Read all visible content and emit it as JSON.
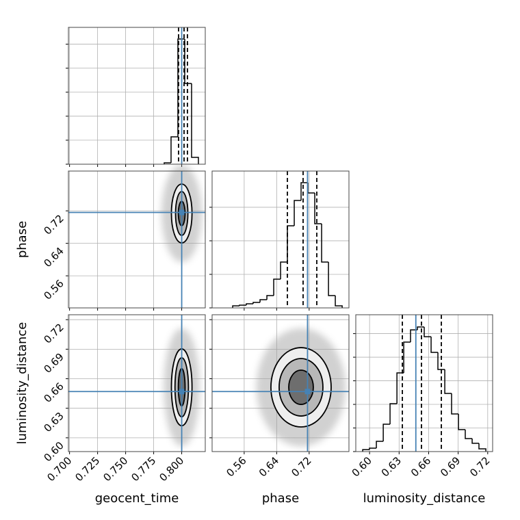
{
  "chart_data": [
    {
      "type": "histogram",
      "bins": [
        0.7844,
        0.7905,
        0.7966,
        0.8027,
        0.8088,
        0.8149
      ],
      "counts": [
        57,
        1140,
        5216,
        3363,
        285
      ],
      "color": "#000000",
      "quantiles": [
        0.7972,
        0.8021,
        0.8051
      ],
      "truth": 0.8,
      "truth_color": "#4682b4",
      "xlim": [
        0.699,
        0.821
      ],
      "ylim": [
        0,
        5700
      ],
      "xticks": [
        0.7,
        0.725,
        0.75,
        0.775,
        0.8
      ],
      "yticks": [
        0,
        1000,
        2000,
        3000,
        4000,
        5000
      ],
      "xtick_labels": false,
      "ytick_labels": false,
      "grid": true
    },
    {
      "type": "contour",
      "ylabel": "phase",
      "center": [
        0.8,
        0.7135
      ],
      "contours": [
        {
          "rx": 0.0092,
          "ry": 0.0725
        },
        {
          "rx": 0.0055,
          "ry": 0.054
        },
        {
          "rx": 0.003,
          "ry": 0.03
        }
      ],
      "fills": [
        "#eeeeee",
        "#b8b8b8",
        "#6e6e6e"
      ],
      "cloud": [
        0.018,
        0.12
      ],
      "truth": [
        0.8,
        0.716
      ],
      "truth_color": "#4682b4",
      "xlim": [
        0.699,
        0.821
      ],
      "ylim": [
        0.481,
        0.818
      ],
      "xticks": [
        0.7,
        0.725,
        0.75,
        0.775,
        0.8
      ],
      "yticks": [
        0.56,
        0.64,
        0.72
      ],
      "xtick_labels": false,
      "ytick_labels": true,
      "grid": true
    },
    {
      "type": "histogram",
      "bins": [
        0.5316,
        0.5484,
        0.5653,
        0.5821,
        0.599,
        0.6159,
        0.6327,
        0.6496,
        0.6664,
        0.6833,
        0.7001,
        0.717,
        0.7338,
        0.7507,
        0.7676,
        0.7844,
        0.8013
      ],
      "counts": [
        31,
        41,
        61,
        82,
        122,
        184,
        428,
        683,
        1224,
        1601,
        1867,
        1714,
        1255,
        683,
        184,
        31
      ],
      "color": "#000000",
      "quantiles": [
        0.6664,
        0.7051,
        0.7388
      ],
      "truth": 0.716,
      "truth_color": "#4682b4",
      "xlim": [
        0.481,
        0.818
      ],
      "ylim": [
        0,
        2040
      ],
      "xticks": [
        0.56,
        0.64,
        0.72
      ],
      "yticks": [
        0,
        500,
        1000,
        1500
      ],
      "xtick_labels": false,
      "ytick_labels": false,
      "grid": true
    },
    {
      "type": "contour",
      "xlabel": "geocent_time",
      "ylabel": "luminosity_distance",
      "center": [
        0.8,
        0.6513
      ],
      "contours": [
        {
          "rx": 0.0092,
          "ry": 0.039
        },
        {
          "rx": 0.006,
          "ry": 0.03
        },
        {
          "rx": 0.003,
          "ry": 0.019
        }
      ],
      "fills": [
        "#eeeeee",
        "#b8b8b8",
        "#6e6e6e"
      ],
      "cloud": [
        0.016,
        0.06
      ],
      "truth": [
        0.8,
        0.647
      ],
      "truth_color": "#4682b4",
      "xlim": [
        0.699,
        0.821
      ],
      "ylim": [
        0.586,
        0.725
      ],
      "xticks": [
        {
          "value": 0.7,
          "label": "0.700"
        },
        0.725,
        {
          "value": 0.75,
          "label": "0.750"
        },
        0.775,
        {
          "value": 0.8,
          "label": "0.800"
        }
      ],
      "yticks": [
        {
          "value": 0.6,
          "label": "0.60"
        },
        0.63,
        0.66,
        0.69,
        0.72
      ],
      "xtick_labels": true,
      "ytick_labels": true,
      "grid": true
    },
    {
      "type": "contour",
      "xlabel": "phase",
      "center": [
        0.7,
        0.6513
      ],
      "contours": [
        {
          "rx": 0.0742,
          "ry": 0.0403
        },
        {
          "rx": 0.0539,
          "ry": 0.0292
        },
        {
          "rx": 0.0303,
          "ry": 0.0174
        }
      ],
      "fills": [
        "#eeeeee",
        "#b8b8b8",
        "#6e6e6e"
      ],
      "cloud": [
        0.11,
        0.06
      ],
      "truth": [
        0.716,
        0.647
      ],
      "truth_color": "#4682b4",
      "xlim": [
        0.481,
        0.818
      ],
      "ylim": [
        0.586,
        0.725
      ],
      "xticks": [
        0.56,
        0.64,
        0.72
      ],
      "yticks": [
        0.6,
        0.63,
        0.66,
        0.69,
        0.72
      ],
      "xtick_labels": true,
      "ytick_labels": false,
      "grid": true
    },
    {
      "type": "histogram",
      "xlabel": "luminosity_distance",
      "bins": [
        0.593,
        0.5999,
        0.6069,
        0.6139,
        0.6208,
        0.6278,
        0.6347,
        0.6416,
        0.6486,
        0.6555,
        0.6625,
        0.6694,
        0.6764,
        0.6833,
        0.6903,
        0.6972,
        0.7042,
        0.7111,
        0.7181
      ],
      "counts": [
        17,
        29,
        87,
        232,
        406,
        667,
        928,
        1032,
        1056,
        974,
        841,
        696,
        493,
        319,
        186,
        110,
        70,
        23
      ],
      "color": "#000000",
      "quantiles": [
        0.6333,
        0.6527,
        0.6729
      ],
      "truth": 0.647,
      "truth_color": "#4682b4",
      "xlim": [
        0.586,
        0.725
      ],
      "ylim": [
        0,
        1160
      ],
      "xticks": [
        {
          "value": 0.6,
          "label": "0.60"
        },
        0.63,
        0.66,
        0.69,
        0.72
      ],
      "yticks": [
        0,
        200,
        400,
        600,
        800,
        1000
      ],
      "xtick_labels": true,
      "ytick_labels": false,
      "grid": true
    }
  ]
}
